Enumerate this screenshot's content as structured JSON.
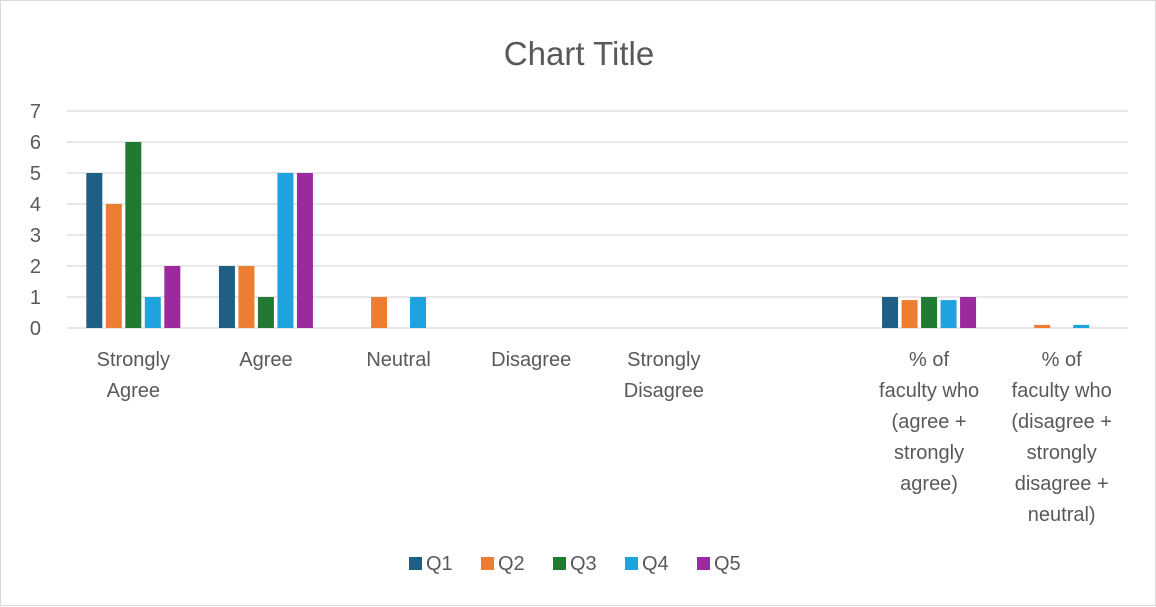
{
  "chart_data": {
    "type": "bar",
    "title": "Chart Title",
    "xlabel": "",
    "ylabel": "",
    "ylim": [
      0,
      7
    ],
    "yticks": [
      "0",
      "1",
      "2",
      "3",
      "4",
      "5",
      "6",
      "7"
    ],
    "grid": true,
    "legend_position": "bottom",
    "categories": [
      [
        "Strongly",
        "Agree"
      ],
      [
        "Agree"
      ],
      [
        "Neutral"
      ],
      [
        "Disagree"
      ],
      [
        "Strongly",
        "Disagree"
      ],
      [
        ""
      ],
      [
        "% of",
        "faculty who",
        "(agree +",
        "strongly",
        "agree)"
      ],
      [
        "% of",
        "faculty who",
        "(disagree +",
        "strongly",
        "disagree +",
        "neutral)"
      ]
    ],
    "series": [
      {
        "name": "Q1",
        "color": "#1f5f86",
        "values": [
          5,
          2,
          0,
          0,
          0,
          0,
          1,
          0
        ]
      },
      {
        "name": "Q2",
        "color": "#ed7d31",
        "values": [
          4,
          2,
          1,
          0,
          0,
          0,
          0.9,
          0.1
        ]
      },
      {
        "name": "Q3",
        "color": "#217a32",
        "values": [
          6,
          1,
          0,
          0,
          0,
          0,
          1,
          0
        ]
      },
      {
        "name": "Q4",
        "color": "#1fa3de",
        "values": [
          1,
          5,
          1,
          0,
          0,
          0,
          0.9,
          0.1
        ]
      },
      {
        "name": "Q5",
        "color": "#9b2a9e",
        "values": [
          2,
          5,
          0,
          0,
          0,
          0,
          1,
          0
        ]
      }
    ]
  }
}
